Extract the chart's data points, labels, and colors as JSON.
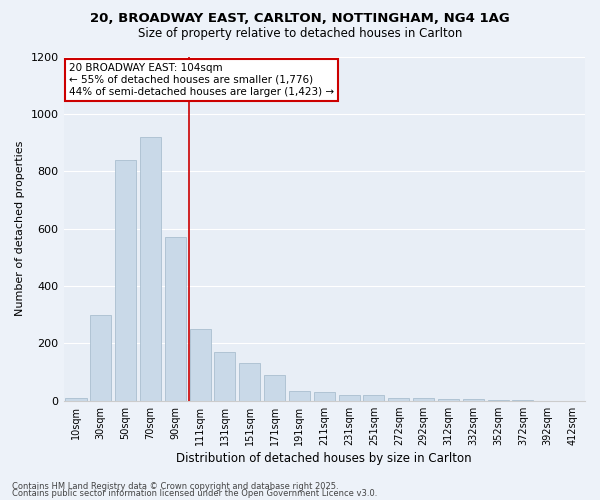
{
  "title1": "20, BROADWAY EAST, CARLTON, NOTTINGHAM, NG4 1AG",
  "title2": "Size of property relative to detached houses in Carlton",
  "xlabel": "Distribution of detached houses by size in Carlton",
  "ylabel": "Number of detached properties",
  "categories": [
    "10sqm",
    "30sqm",
    "50sqm",
    "70sqm",
    "90sqm",
    "111sqm",
    "131sqm",
    "151sqm",
    "171sqm",
    "191sqm",
    "211sqm",
    "231sqm",
    "251sqm",
    "272sqm",
    "292sqm",
    "312sqm",
    "332sqm",
    "352sqm",
    "372sqm",
    "392sqm",
    "412sqm"
  ],
  "values": [
    10,
    300,
    840,
    920,
    570,
    250,
    170,
    130,
    90,
    35,
    30,
    20,
    20,
    10,
    10,
    5,
    5,
    3,
    2,
    0,
    0
  ],
  "bar_color": "#c9d9e8",
  "bar_edge_color": "#aabfcf",
  "vline_color": "#cc0000",
  "vline_x": 4.55,
  "annotation_text": "20 BROADWAY EAST: 104sqm\n← 55% of detached houses are smaller (1,776)\n44% of semi-detached houses are larger (1,423) →",
  "annotation_box_facecolor": "#ffffff",
  "annotation_box_edgecolor": "#cc0000",
  "ylim": [
    0,
    1200
  ],
  "yticks": [
    0,
    200,
    400,
    600,
    800,
    1000,
    1200
  ],
  "fig_bg": "#edf2f9",
  "plot_bg": "#e8eef6",
  "grid_color": "#ffffff",
  "footer1": "Contains HM Land Registry data © Crown copyright and database right 2025.",
  "footer2": "Contains public sector information licensed under the Open Government Licence v3.0."
}
